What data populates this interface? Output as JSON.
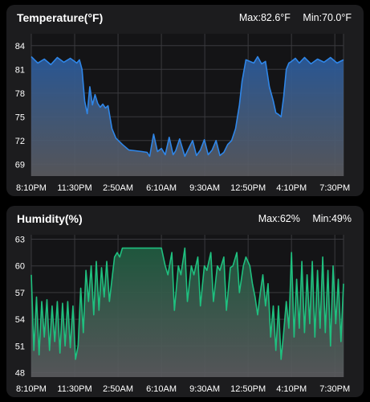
{
  "chart_data": [
    {
      "type": "area",
      "title": "Temperature(°F)",
      "max_label": "Max:82.6°F",
      "min_label": "Min:70.0°F",
      "line_color": "#2f86e8",
      "fill_top_color": "#2a5a9a",
      "fill_bottom_color": "#5c5c60",
      "ylim": [
        67.5,
        85.5
      ],
      "yticks": [
        84,
        81,
        78,
        75,
        72,
        69
      ],
      "xlim": [
        0,
        24
      ],
      "xticks": [
        0,
        3.333,
        6.667,
        10,
        13.333,
        16.667,
        20,
        23.333
      ],
      "xtick_labels": [
        "8:10PM",
        "11:30PM",
        "2:50AM",
        "6:10AM",
        "9:30AM",
        "12:50PM",
        "4:10PM",
        "7:30PM"
      ],
      "series": [
        {
          "x": [
            0,
            0.5,
            1,
            1.5,
            2,
            2.5,
            3,
            3.5,
            3.7,
            3.9,
            4.1,
            4.3,
            4.5,
            4.7,
            4.9,
            5.1,
            5.3,
            5.5,
            5.7,
            5.9,
            6.2,
            6.5,
            7,
            7.5,
            8,
            8.5,
            8.9,
            9.1,
            9.4,
            9.7,
            10,
            10.3,
            10.6,
            10.9,
            11.1,
            11.4,
            11.8,
            12.1,
            12.4,
            12.7,
            13,
            13.3,
            13.6,
            13.9,
            14.2,
            14.5,
            14.8,
            15.1,
            15.4,
            15.7,
            16,
            16.2,
            16.5,
            16.8,
            17.1,
            17.4,
            17.7,
            18,
            18.3,
            18.6,
            18.8,
            19,
            19.2,
            19.4,
            19.6,
            19.8,
            20,
            20.3,
            20.6,
            21,
            21.5,
            22,
            22.5,
            23,
            23.5,
            24
          ],
          "y": [
            82.6,
            81.8,
            82.3,
            81.6,
            82.5,
            81.9,
            82.4,
            81.8,
            82.2,
            81.0,
            77.0,
            75.4,
            78.8,
            76.5,
            77.8,
            76.7,
            76.2,
            76.6,
            76.1,
            76.4,
            73.5,
            72.3,
            71.5,
            70.8,
            70.7,
            70.6,
            70.5,
            70.0,
            72.8,
            70.6,
            71.0,
            70.2,
            72.4,
            70.2,
            70.7,
            72.2,
            70.0,
            71.0,
            72.0,
            70.1,
            70.8,
            72.1,
            70.2,
            70.8,
            72.0,
            70.1,
            70.5,
            71.5,
            72.0,
            73.5,
            76.5,
            79.5,
            82.2,
            82.0,
            81.8,
            82.6,
            81.7,
            82.0,
            78.8,
            77.0,
            75.5,
            75.3,
            75.0,
            77.5,
            81.0,
            81.8,
            82.0,
            82.4,
            81.8,
            82.5,
            81.7,
            82.3,
            81.9,
            82.5,
            81.8,
            82.2
          ]
        }
      ]
    },
    {
      "type": "area",
      "title": "Humidity(%)",
      "max_label": "Max:62%",
      "min_label": "Min:49%",
      "line_color": "#1fc07f",
      "fill_top_color": "#1f5a3f",
      "fill_bottom_color": "#5c5c60",
      "ylim": [
        47.5,
        63.5
      ],
      "yticks": [
        63,
        60,
        57,
        54,
        51,
        48
      ],
      "xlim": [
        0,
        24
      ],
      "xticks": [
        0,
        3.333,
        6.667,
        10,
        13.333,
        16.667,
        20,
        23.333
      ],
      "xtick_labels": [
        "8:10PM",
        "11:30PM",
        "2:50AM",
        "6:10AM",
        "9:30AM",
        "12:50PM",
        "4:10PM",
        "7:30PM"
      ],
      "series": [
        {
          "x": [
            0,
            0.2,
            0.4,
            0.6,
            0.8,
            1.0,
            1.2,
            1.4,
            1.6,
            1.8,
            2.0,
            2.2,
            2.4,
            2.6,
            2.8,
            3.0,
            3.2,
            3.4,
            3.6,
            3.8,
            4.0,
            4.2,
            4.4,
            4.6,
            4.8,
            5.0,
            5.2,
            5.4,
            5.6,
            5.8,
            6.0,
            6.2,
            6.4,
            6.6,
            6.8,
            7.0,
            7.2,
            7.5,
            8.0,
            8.5,
            9.0,
            9.5,
            10.0,
            10.3,
            10.5,
            10.8,
            11.0,
            11.3,
            11.5,
            11.8,
            12.0,
            12.3,
            12.5,
            12.8,
            13.0,
            13.3,
            13.5,
            13.8,
            14.0,
            14.3,
            14.5,
            14.8,
            15.0,
            15.3,
            15.5,
            15.8,
            16.0,
            16.3,
            16.5,
            16.8,
            17.0,
            17.2,
            17.4,
            17.6,
            17.8,
            18.0,
            18.2,
            18.4,
            18.6,
            18.8,
            19.0,
            19.2,
            19.4,
            19.6,
            19.8,
            20.0,
            20.2,
            20.4,
            20.6,
            20.8,
            21.0,
            21.2,
            21.4,
            21.6,
            21.8,
            22.0,
            22.2,
            22.4,
            22.6,
            22.8,
            23.0,
            23.2,
            23.4,
            23.6,
            23.8,
            24.0
          ],
          "y": [
            59.0,
            50.5,
            56.5,
            50.0,
            56.0,
            52.0,
            56.2,
            50.5,
            55.5,
            51.5,
            56.0,
            50.2,
            55.8,
            51.0,
            56.0,
            50.8,
            55.5,
            49.5,
            51.0,
            57.5,
            52.5,
            59.5,
            56.0,
            60.0,
            54.5,
            60.5,
            55.0,
            59.8,
            56.5,
            60.5,
            56.0,
            58.5,
            61.0,
            61.5,
            61.0,
            62.0,
            62.0,
            62.0,
            62.0,
            62.0,
            62.0,
            62.0,
            62.0,
            60.0,
            59.0,
            61.5,
            55.0,
            60.0,
            59.0,
            62.0,
            56.0,
            60.0,
            59.0,
            61.0,
            55.5,
            60.0,
            59.5,
            61.5,
            56.0,
            60.0,
            59.5,
            61.0,
            55.0,
            59.8,
            60.0,
            61.5,
            57.0,
            60.0,
            61.0,
            60.0,
            58.0,
            56.5,
            54.5,
            57.0,
            59.0,
            55.5,
            58.0,
            52.0,
            55.5,
            50.5,
            55.5,
            49.5,
            52.5,
            56.0,
            53.0,
            61.5,
            52.0,
            58.5,
            53.0,
            60.5,
            52.5,
            59.0,
            53.5,
            60.5,
            52.0,
            59.5,
            53.0,
            61.0,
            52.5,
            59.5,
            51.0,
            60.0,
            53.5,
            58.5,
            51.5,
            58.0
          ]
        }
      ]
    }
  ]
}
